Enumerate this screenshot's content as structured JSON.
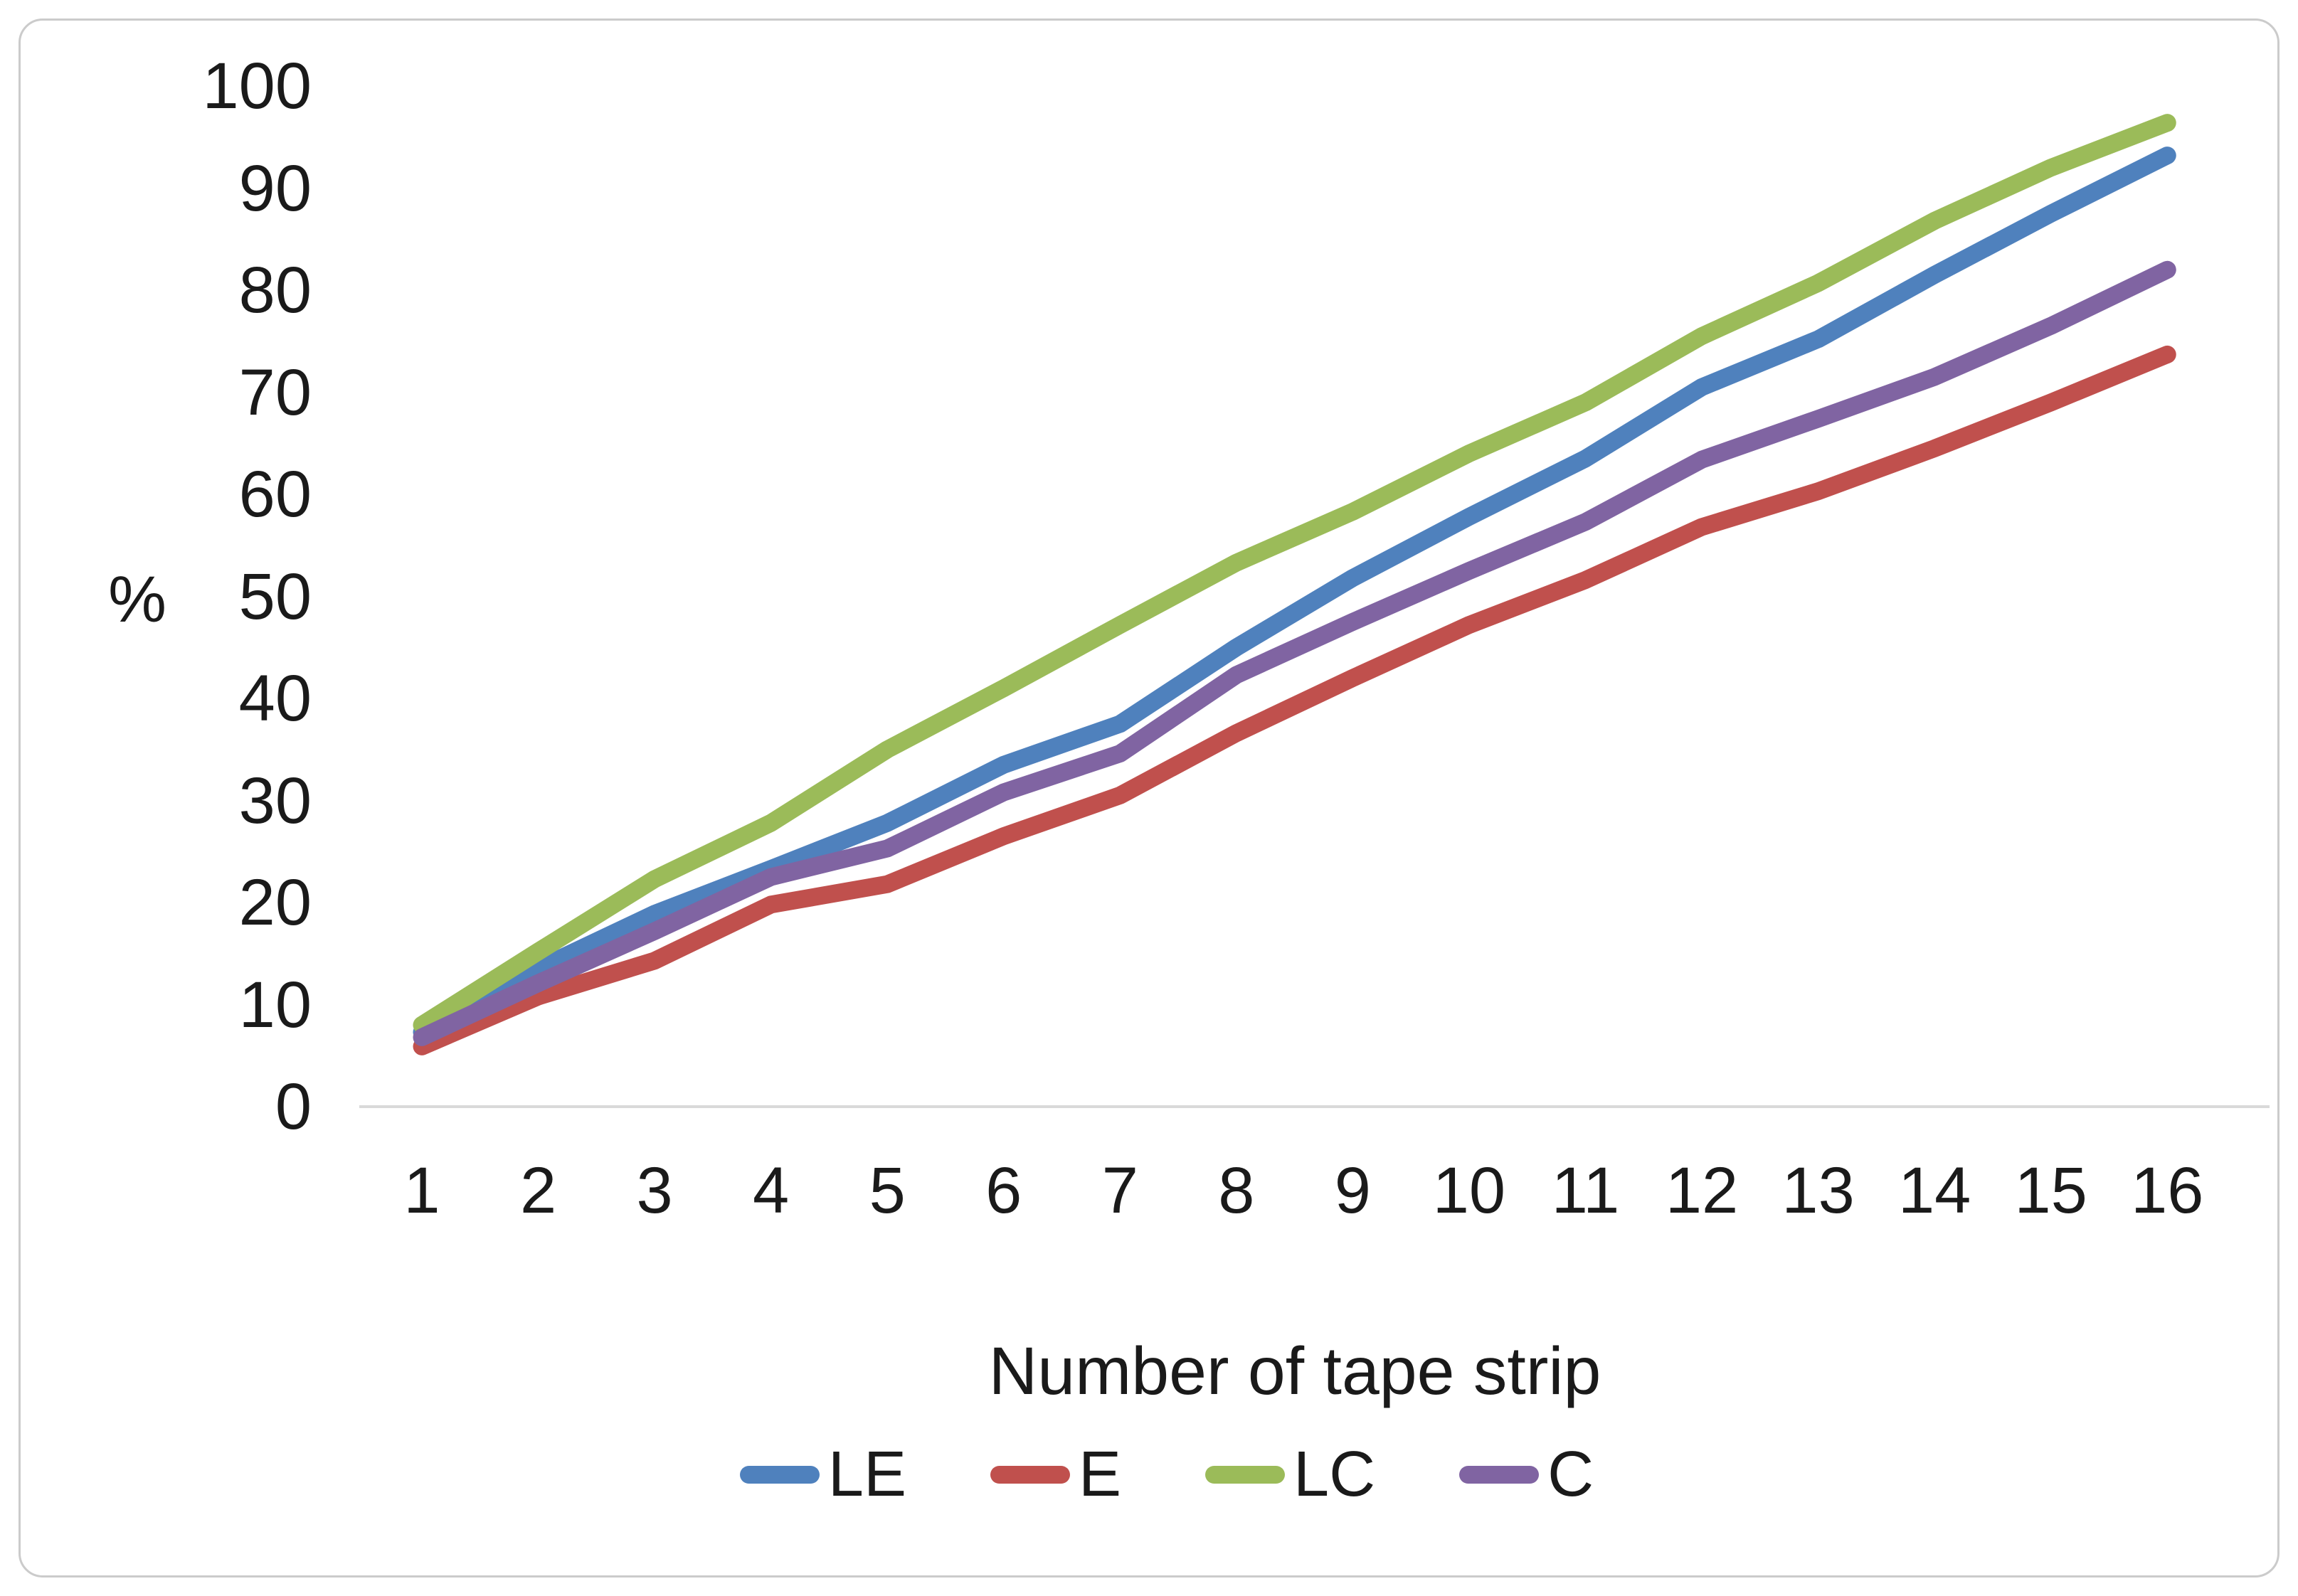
{
  "figure": {
    "background": "#FFFFFF",
    "border_color": "#CBCBCB"
  },
  "axes": {
    "y_unit_label": "%",
    "x_title": "Number of tape strip",
    "yticks": [
      0,
      10,
      20,
      30,
      40,
      50,
      60,
      70,
      80,
      90,
      100
    ],
    "xticks": [
      1,
      2,
      3,
      4,
      5,
      6,
      7,
      8,
      9,
      10,
      11,
      12,
      13,
      14,
      15,
      16
    ],
    "axis_line_color": "#D9D9D9"
  },
  "chart_data": {
    "type": "line",
    "title": "",
    "xlabel": "Number of tape strip",
    "ylabel": "%",
    "x": [
      1,
      2,
      3,
      4,
      5,
      6,
      7,
      8,
      9,
      10,
      11,
      12,
      13,
      14,
      15,
      16
    ],
    "xlim": [
      1,
      16
    ],
    "ylim": [
      0,
      100
    ],
    "ytick_step": 10,
    "grid": false,
    "legend_position": "bottom",
    "legend_order": [
      "LE",
      "E",
      "LC",
      "C"
    ],
    "series": [
      {
        "name": "LE",
        "color": "#4F81BD",
        "values": [
          7.3,
          13.5,
          18.9,
          23.3,
          27.8,
          33.5,
          37.5,
          45.0,
          51.8,
          57.8,
          63.5,
          70.5,
          75.2,
          81.5,
          87.5,
          93.2
        ]
      },
      {
        "name": "E",
        "color": "#C0504D",
        "values": [
          5.9,
          10.8,
          14.3,
          19.8,
          21.8,
          26.5,
          30.5,
          36.6,
          42.0,
          47.2,
          51.6,
          56.8,
          60.3,
          64.5,
          69.0,
          73.7
        ]
      },
      {
        "name": "LC",
        "color": "#9BBB59",
        "values": [
          8.0,
          15.2,
          22.3,
          27.8,
          35.0,
          41.0,
          47.2,
          53.3,
          58.3,
          64.0,
          69.0,
          75.5,
          80.7,
          86.8,
          92.0,
          96.4
        ]
      },
      {
        "name": "C",
        "color": "#8064A2",
        "values": [
          6.8,
          12.1,
          17.2,
          22.5,
          25.3,
          30.8,
          34.6,
          42.3,
          47.5,
          52.5,
          57.3,
          63.4,
          67.4,
          71.5,
          76.5,
          82.0
        ]
      }
    ]
  }
}
